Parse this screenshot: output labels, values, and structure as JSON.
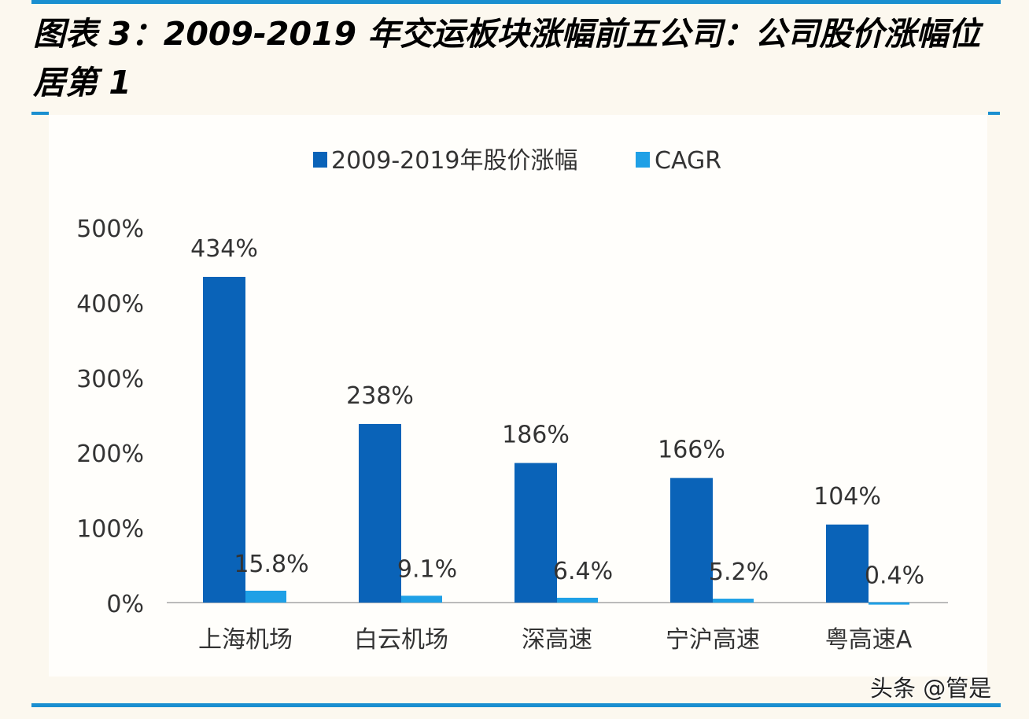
{
  "title": "图表 3：2009-2019 年交运板块涨幅前五公司：公司股价涨幅位居第 1",
  "watermark": "头条 @管是",
  "chart_data": {
    "type": "bar",
    "categories": [
      "上海机场",
      "白云机场",
      "深高速",
      "宁沪高速",
      "粤高速A"
    ],
    "series": [
      {
        "name": "2009-2019年股价涨幅",
        "values": [
          434,
          238,
          186,
          166,
          104
        ],
        "labels": [
          "434%",
          "238%",
          "186%",
          "166%",
          "104%"
        ],
        "color": "#0a63b8"
      },
      {
        "name": "CAGR",
        "values": [
          15.8,
          9.1,
          6.4,
          5.2,
          0.4
        ],
        "labels": [
          "15.8%",
          "9.1%",
          "6.4%",
          "5.2%",
          "0.4%"
        ],
        "color": "#1fa0e6"
      }
    ],
    "yticks": [
      "0%",
      "100%",
      "200%",
      "300%",
      "400%",
      "500%"
    ],
    "ylim": [
      0,
      500
    ],
    "unit": "%",
    "legend": "top",
    "grid": false
  }
}
